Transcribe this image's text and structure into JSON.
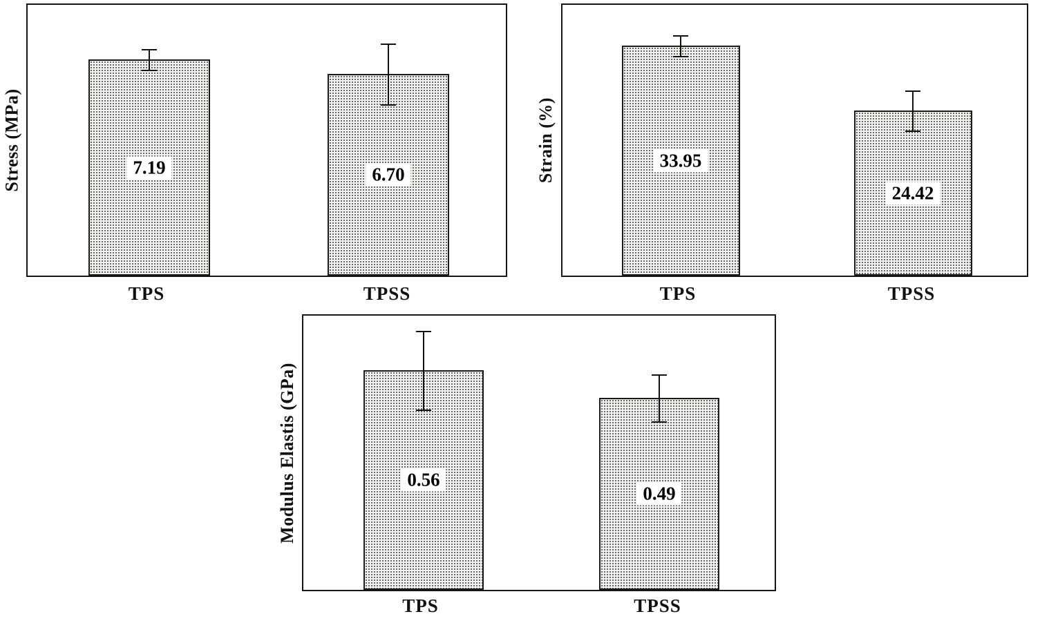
{
  "figure": {
    "description": "Three bar charts with stippled bars and error bars comparing TPS and TPSS samples"
  },
  "style": {
    "bar_fill": "#f2f0ec",
    "bar_dot_color": "#4b4b4b",
    "border_color": "#151515",
    "label_background": "#ffffff"
  },
  "chart_data": [
    {
      "type": "bar",
      "title": "",
      "xlabel": "",
      "ylabel": "Stress (MPa)",
      "categories": [
        "TPS",
        "TPSS"
      ],
      "values": [
        7.19,
        6.7
      ],
      "value_labels": [
        "7.19",
        "6.70"
      ],
      "errors": [
        0.35,
        1.0
      ],
      "ylim": [
        0,
        9
      ],
      "grid": false,
      "legend": "none",
      "bar_pattern": "stipple-dots"
    },
    {
      "type": "bar",
      "title": "",
      "xlabel": "",
      "ylabel": "Strain (%)",
      "categories": [
        "TPS",
        "TPSS"
      ],
      "values": [
        33.95,
        24.42
      ],
      "value_labels": [
        "33.95",
        "24.42"
      ],
      "errors": [
        1.5,
        3.0
      ],
      "ylim": [
        0,
        40
      ],
      "grid": false,
      "legend": "none",
      "bar_pattern": "stipple-dots"
    },
    {
      "type": "bar",
      "title": "",
      "xlabel": "",
      "ylabel": "Modulus Elastis (GPa)",
      "categories": [
        "TPS",
        "TPSS"
      ],
      "values": [
        0.56,
        0.49
      ],
      "value_labels": [
        "0.56",
        "0.49"
      ],
      "errors": [
        0.1,
        0.06
      ],
      "ylim": [
        0,
        0.7
      ],
      "grid": false,
      "legend": "none",
      "bar_pattern": "stipple-dots"
    }
  ]
}
